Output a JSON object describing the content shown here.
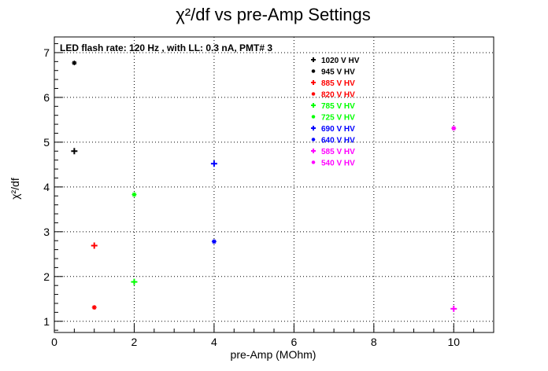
{
  "chart_data": {
    "type": "scatter",
    "title": "χ²/df vs pre-Amp Settings",
    "xlabel": "pre-Amp (MOhm)",
    "ylabel": "χ²/df",
    "annotation": "LED flash rate: 120 Hz , with LL: 0.3 nA, PMT# 3",
    "xlim": [
      0,
      11
    ],
    "ylim": [
      0.75,
      7.35
    ],
    "x_ticks": [
      0,
      2,
      4,
      6,
      8,
      10
    ],
    "y_ticks": [
      1,
      2,
      3,
      4,
      5,
      6,
      7
    ],
    "grid": true,
    "legend_position": "top-right",
    "series": [
      {
        "name": "1020 V HV",
        "color": "#000000",
        "marker": "plus",
        "points": [
          [
            0.5,
            4.8
          ]
        ]
      },
      {
        "name": "945 V HV",
        "color": "#000000",
        "marker": "star",
        "points": [
          [
            0.5,
            6.77
          ]
        ]
      },
      {
        "name": "885 V HV",
        "color": "#ff0000",
        "marker": "plus",
        "points": [
          [
            1.0,
            2.69
          ]
        ]
      },
      {
        "name": "820 V HV",
        "color": "#ff0000",
        "marker": "star",
        "points": [
          [
            1.0,
            1.31
          ]
        ]
      },
      {
        "name": "785 V HV",
        "color": "#00ff00",
        "marker": "plus",
        "points": [
          [
            2.0,
            1.88
          ]
        ]
      },
      {
        "name": "725 V HV",
        "color": "#00ff00",
        "marker": "star",
        "points": [
          [
            2.0,
            3.83
          ]
        ]
      },
      {
        "name": "690 V HV",
        "color": "#0000ff",
        "marker": "plus",
        "points": [
          [
            4.0,
            4.52
          ]
        ]
      },
      {
        "name": "640 V HV",
        "color": "#0000ff",
        "marker": "star",
        "points": [
          [
            4.0,
            2.78
          ]
        ]
      },
      {
        "name": "585 V HV",
        "color": "#ff00ff",
        "marker": "plus",
        "points": [
          [
            10.0,
            1.28
          ]
        ]
      },
      {
        "name": "540 V HV",
        "color": "#ff00ff",
        "marker": "star",
        "points": [
          [
            10.0,
            5.31
          ]
        ]
      }
    ]
  }
}
